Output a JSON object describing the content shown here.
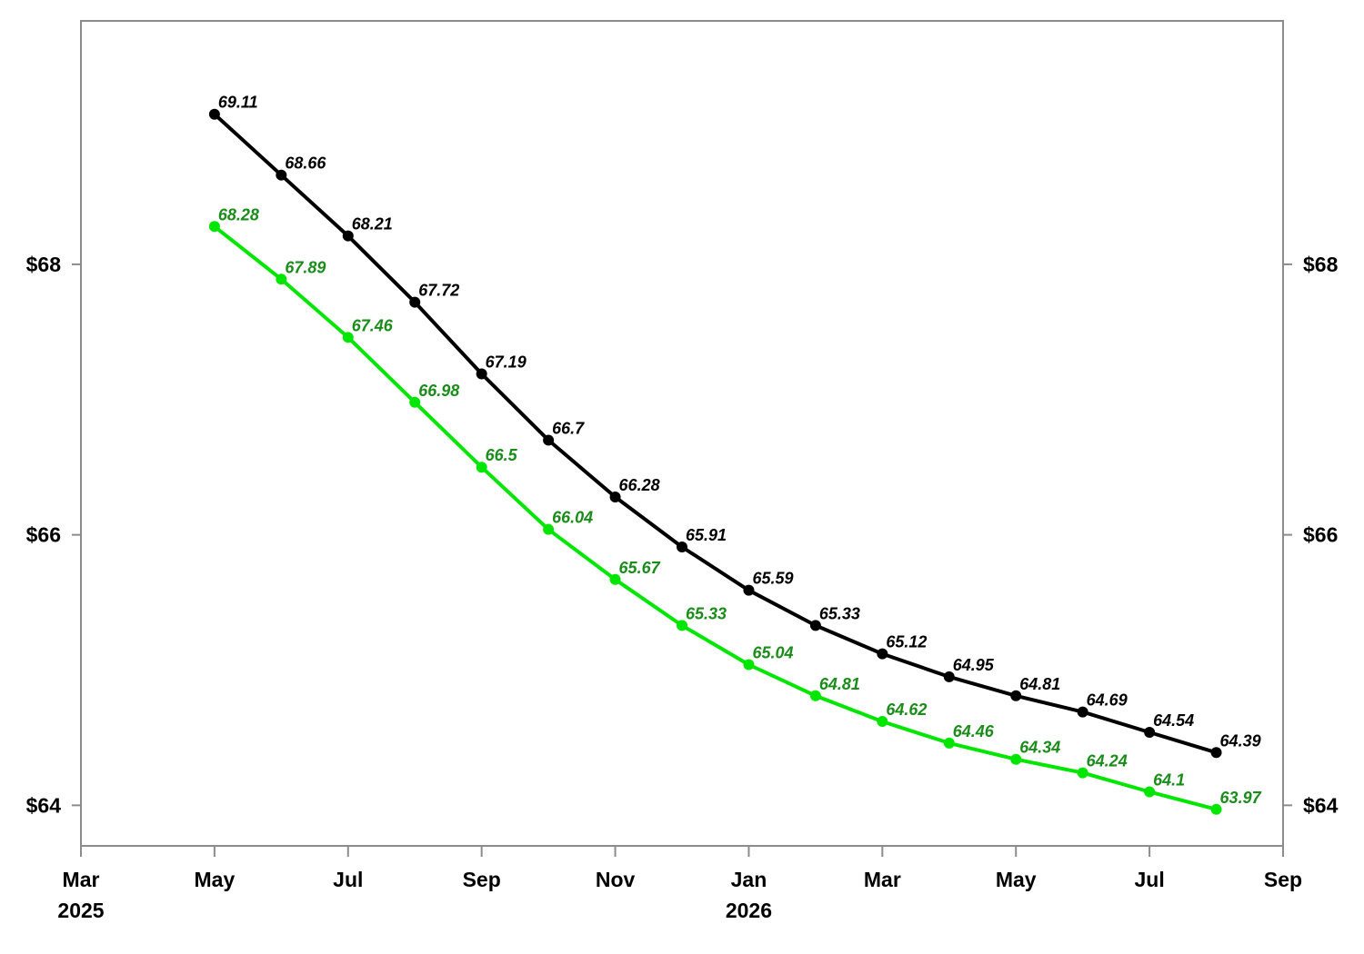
{
  "chart_data": {
    "type": "line",
    "title": "",
    "xlabel": "",
    "ylabel": "",
    "x": [
      "2025-05",
      "2025-06",
      "2025-07",
      "2025-08",
      "2025-09",
      "2025-10",
      "2025-11",
      "2025-12",
      "2026-01",
      "2026-02",
      "2026-03",
      "2026-04",
      "2026-05",
      "2026-06",
      "2026-07",
      "2026-08"
    ],
    "xlim": [
      "2025-03",
      "2026-09"
    ],
    "x_ticks": [
      {
        "month": "Mar",
        "year": "2025"
      },
      {
        "month": "May",
        "year": ""
      },
      {
        "month": "Jul",
        "year": ""
      },
      {
        "month": "Sep",
        "year": ""
      },
      {
        "month": "Nov",
        "year": ""
      },
      {
        "month": "Jan",
        "year": "2026"
      },
      {
        "month": "Mar",
        "year": ""
      },
      {
        "month": "May",
        "year": ""
      },
      {
        "month": "Jul",
        "year": ""
      },
      {
        "month": "Sep",
        "year": ""
      }
    ],
    "ylim": [
      63.7,
      69.8
    ],
    "y_ticks": [
      64,
      66,
      68
    ],
    "y_tick_labels": [
      "$64",
      "$66",
      "$68"
    ],
    "y_axis_both_sides": true,
    "grid": false,
    "series": [
      {
        "color": "#000000",
        "label_color": "#000000",
        "values": [
          69.11,
          68.66,
          68.21,
          67.72,
          67.19,
          66.7,
          66.28,
          65.91,
          65.59,
          65.33,
          65.12,
          64.95,
          64.81,
          64.69,
          64.54,
          64.39
        ],
        "labels": [
          "69.11",
          "68.66",
          "68.21",
          "67.72",
          "67.19",
          "66.7",
          "66.28",
          "65.91",
          "65.59",
          "65.33",
          "65.12",
          "64.95",
          "64.81",
          "64.69",
          "64.54",
          "64.39"
        ]
      },
      {
        "color": "#00e600",
        "label_color": "#1a8c1a",
        "values": [
          68.28,
          67.89,
          67.46,
          66.98,
          66.5,
          66.04,
          65.67,
          65.33,
          65.04,
          64.81,
          64.62,
          64.46,
          64.34,
          64.24,
          64.1,
          63.97
        ],
        "labels": [
          "68.28",
          "67.89",
          "67.46",
          "66.98",
          "66.5",
          "66.04",
          "65.67",
          "65.33",
          "65.04",
          "64.81",
          "64.62",
          "64.46",
          "64.34",
          "64.24",
          "64.1",
          "63.97"
        ]
      }
    ]
  }
}
